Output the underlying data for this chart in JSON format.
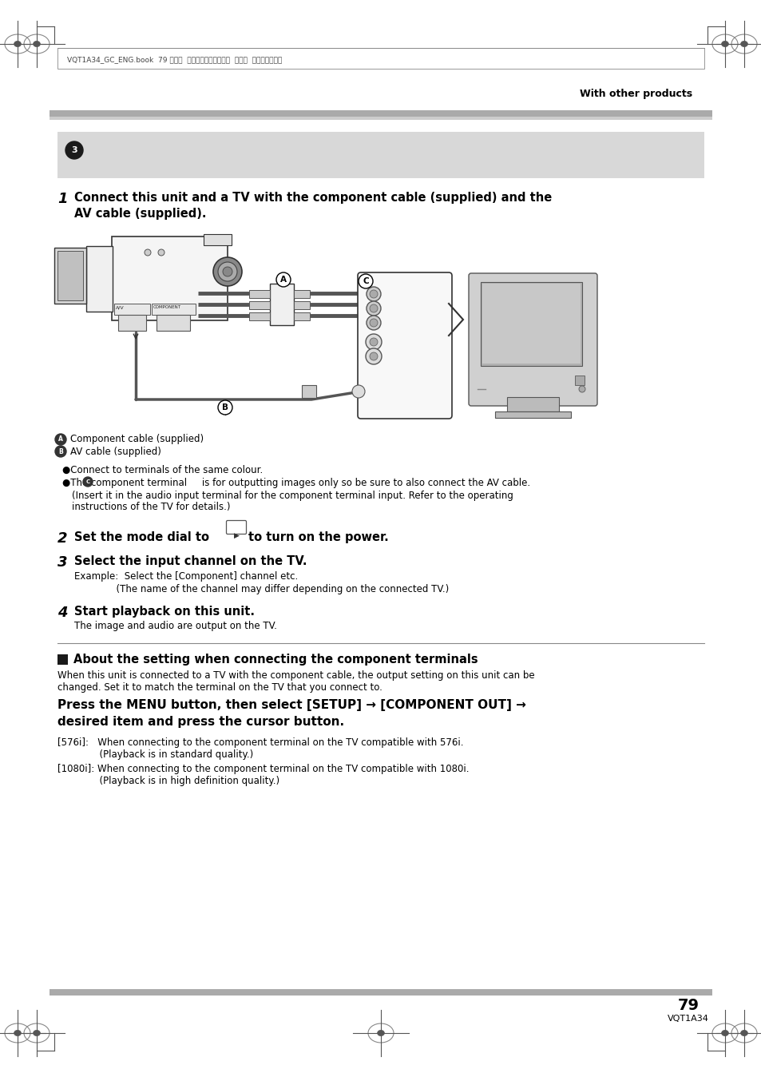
{
  "page_bg": "#ffffff",
  "header_text": "With other products",
  "header_top_text": "VQT1A34_GC_ENG.book  79 ページ  ２００７年１月２７日  土曜日  午後１時４６分",
  "footer_page": "79",
  "footer_model": "VQT1A34"
}
